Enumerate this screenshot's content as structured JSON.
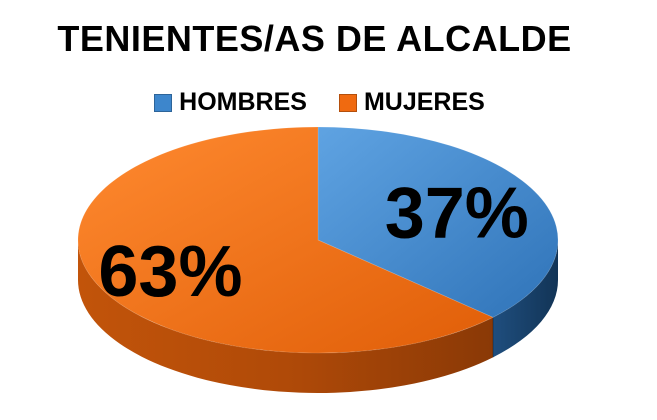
{
  "chart_data": {
    "type": "pie",
    "title": "TENIENTES/AS DE ALCALDE",
    "categories": [
      "HOMBRES",
      "MUJERES"
    ],
    "values": [
      37,
      63
    ],
    "value_labels": [
      "37%",
      "63%"
    ],
    "colors": [
      "#3D86CC",
      "#F06A10"
    ],
    "legend_position": "top",
    "style": "3d"
  }
}
